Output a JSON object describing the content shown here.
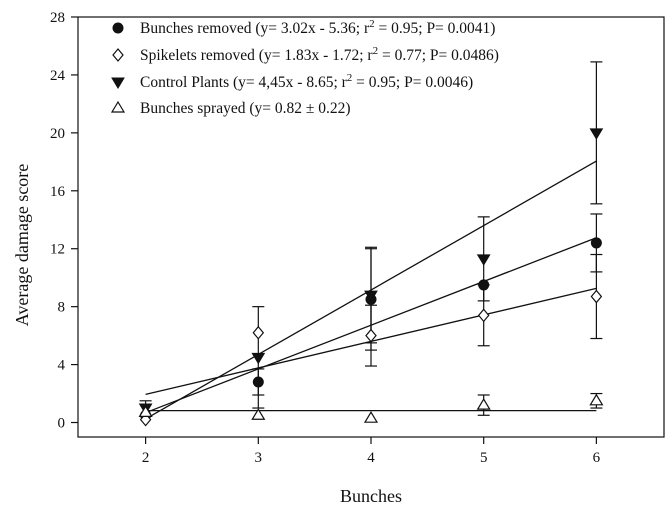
{
  "chart_data": {
    "type": "scatter",
    "xlabel": "Bunches",
    "ylabel": "Average damage score",
    "xlim": [
      1.4,
      6.6
    ],
    "ylim": [
      -1,
      28
    ],
    "xticks": [
      2,
      3,
      4,
      5,
      6
    ],
    "yticks": [
      0,
      4,
      8,
      12,
      16,
      20,
      24,
      28
    ],
    "grid": false,
    "legend_position": "top-left",
    "series": [
      {
        "name": "Bunches removed",
        "fit_text": "(y= 3.02x - 5.36; r",
        "fit_r2_text": " = 0.95; P= 0.0041)",
        "marker": "filled-circle",
        "x": [
          2,
          3,
          4,
          5,
          6
        ],
        "y": [
          0.5,
          2.8,
          8.5,
          9.5,
          12.4
        ],
        "error": [
          0,
          0.9,
          3.5,
          0,
          2.0
        ],
        "fit": {
          "slope": 3.02,
          "intercept": -5.36
        }
      },
      {
        "name": "Spikelets removed",
        "fit_text": "(y= 1.83x - 1.72; r",
        "fit_r2_text": " = 0.77; P= 0.0486)",
        "marker": "open-diamond",
        "x": [
          2,
          3,
          4,
          5,
          6
        ],
        "y": [
          0.2,
          6.2,
          6.0,
          7.4,
          8.7
        ],
        "error": [
          0,
          0,
          2.1,
          2.1,
          2.9
        ],
        "fit": {
          "slope": 1.83,
          "intercept": -1.72
        }
      },
      {
        "name": "Control Plants",
        "fit_text": "(y= 4,45x - 8.65; r",
        "fit_r2_text": " = 0.95; P= 0.0046)",
        "marker": "filled-triangle-down",
        "x": [
          2,
          3,
          4,
          5,
          6
        ],
        "y": [
          1.0,
          4.5,
          8.8,
          11.3,
          20.0
        ],
        "error": [
          0.5,
          3.5,
          3.3,
          2.9,
          4.9
        ],
        "fit": {
          "slope": 4.45,
          "intercept": -8.65
        }
      },
      {
        "name": "Bunches sprayed",
        "fit_text": "(y= 0.82 ± 0.22)",
        "fit_r2_text": "",
        "marker": "open-triangle-up",
        "x": [
          2,
          3,
          4,
          5,
          6
        ],
        "y": [
          0.7,
          0.5,
          0.3,
          1.2,
          1.5
        ],
        "error": [
          0,
          0,
          0,
          0.7,
          0.5
        ],
        "fit": {
          "slope": 0,
          "intercept": 0.82
        }
      }
    ],
    "superscript": "2"
  }
}
